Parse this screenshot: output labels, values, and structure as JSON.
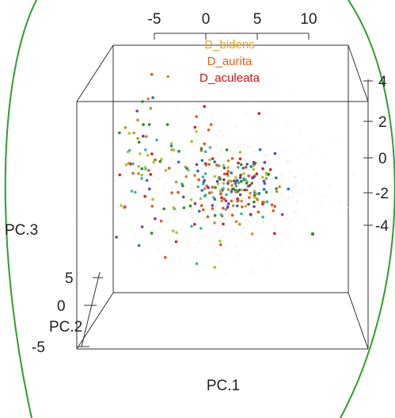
{
  "chart_data": {
    "type": "scatter",
    "projection": "3d",
    "title": "",
    "xlabel": "PC.1",
    "ylabel": "PC.2",
    "zlabel": "PC.3",
    "x_ticks": [
      "-5",
      "0",
      "5",
      "10"
    ],
    "y_ticks": [
      "0",
      "5"
    ],
    "y_ticks_extra": [
      "-5"
    ],
    "z_ticks": [
      "4",
      "2",
      "0",
      "-2",
      "-4"
    ],
    "legend": {
      "placement": "top-center",
      "entries": [
        {
          "name": "D_bidens",
          "color": "#f0a020"
        },
        {
          "name": "D_aurita",
          "color": "#f06010"
        },
        {
          "name": "D_aculeata",
          "color": "#d01010"
        }
      ]
    },
    "grid": false,
    "decoration_color": "#2e9e2e",
    "point_colors": [
      "#d02020",
      "#2a8c2a",
      "#2f6fc0",
      "#40b0b0",
      "#c0902a",
      "#7a3a9a",
      "#9acd32",
      "#e05a1a"
    ]
  }
}
